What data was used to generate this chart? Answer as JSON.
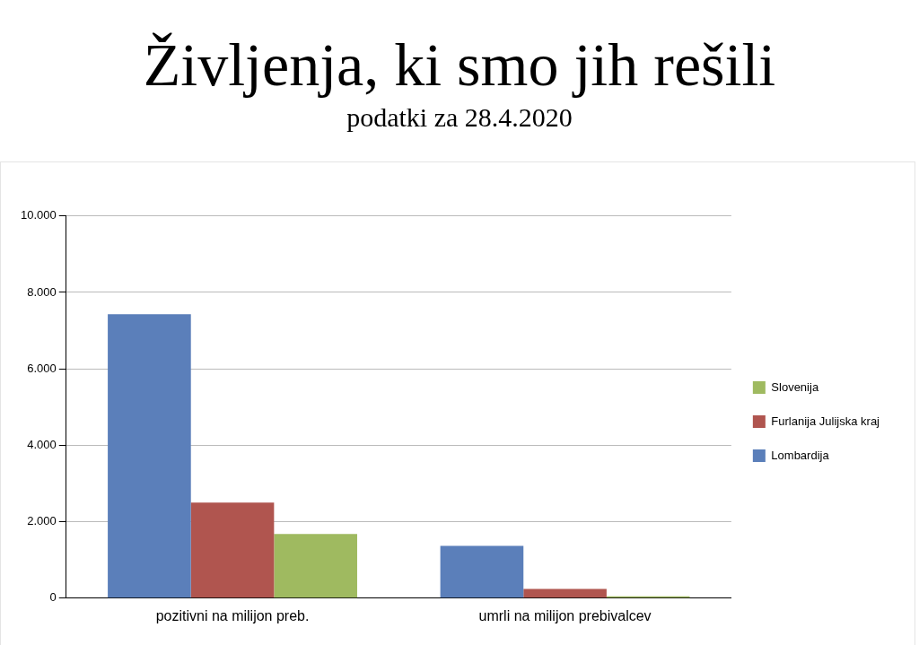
{
  "chart_data": {
    "type": "bar",
    "title": "Življenja, ki smo jih rešili",
    "subtitle": "podatki za 28.4.2020",
    "categories": [
      "pozitivni na milijon preb.",
      "umrli na milijon prebivalcev"
    ],
    "series": [
      {
        "name": "Lombardija",
        "color": "#5b7fba",
        "values": [
          7430,
          1370
        ]
      },
      {
        "name": "Furlanija Julijska kraj",
        "color": "#b0554f",
        "values": [
          2500,
          240
        ]
      },
      {
        "name": "Slovenija",
        "color": "#9fba60",
        "values": [
          1680,
          50
        ]
      }
    ],
    "ylim": [
      0,
      10000
    ],
    "yticks": [
      {
        "value": 0,
        "label": "0"
      },
      {
        "value": 2000,
        "label": "2.000"
      },
      {
        "value": 4000,
        "label": "4.000"
      },
      {
        "value": 6000,
        "label": "6.000"
      },
      {
        "value": 8000,
        "label": "8.000"
      },
      {
        "value": 10000,
        "label": "10.000"
      }
    ],
    "grid": "y",
    "legend": "right"
  }
}
